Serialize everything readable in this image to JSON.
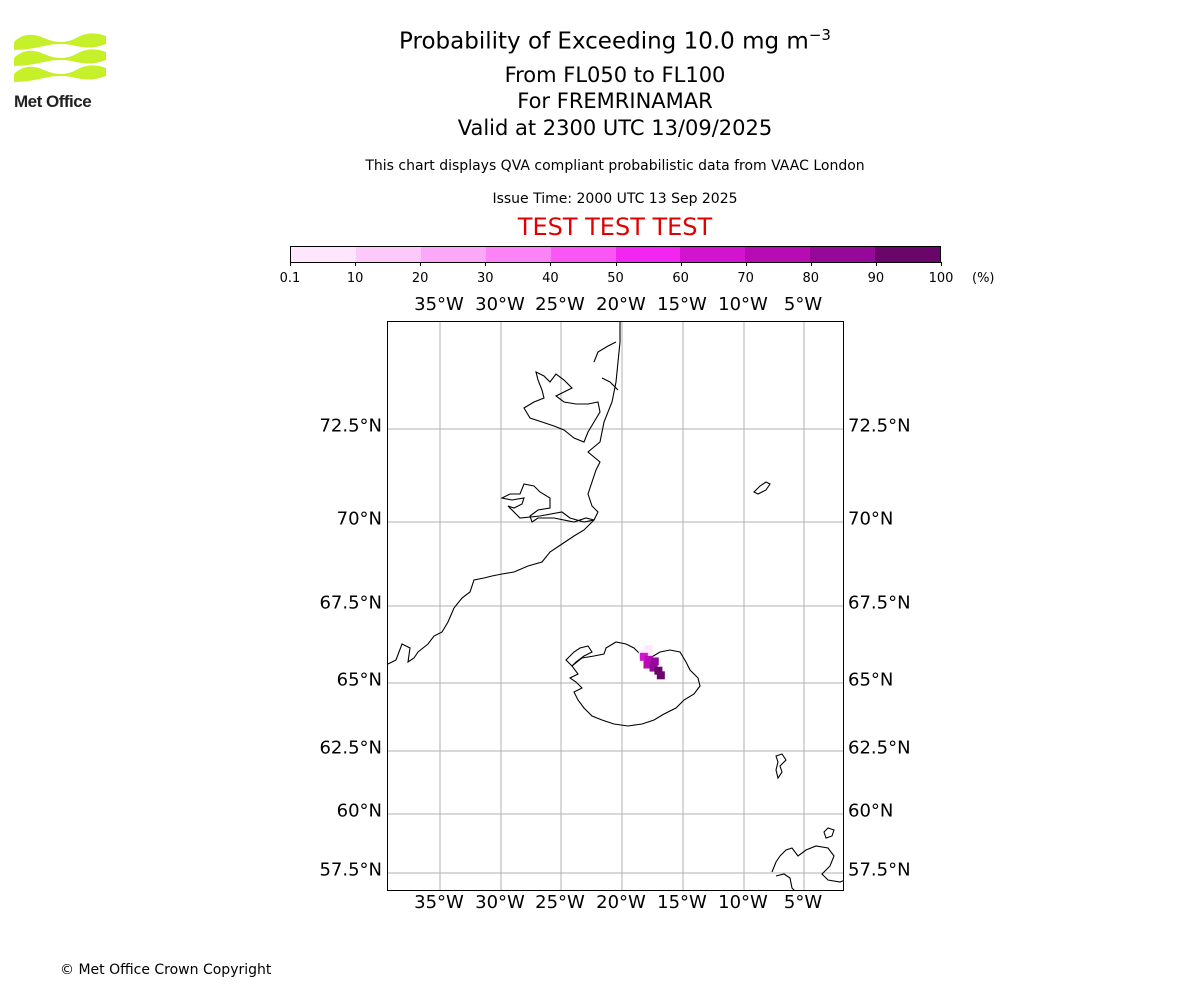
{
  "header": {
    "logo_icon": "met-office-wave-logo",
    "logo_text": "Met Office",
    "title_main": "Probability of Exceeding 10.0 mg m",
    "title_exponent": "−3",
    "levels": "From FL050 to FL100",
    "volcano": "For FREMRINAMAR",
    "valid": "Valid at 2300 UTC 13/09/2025",
    "description": "This chart displays QVA compliant probabilistic data from VAAC London",
    "issue_time": "Issue Time: 2000 UTC 13 Sep 2025",
    "banner": "TEST TEST TEST",
    "banner_color": "#e00000"
  },
  "colorbar": {
    "unit": "(%)",
    "ticks": [
      "0.1",
      "10",
      "20",
      "30",
      "40",
      "50",
      "60",
      "70",
      "80",
      "90",
      "100"
    ],
    "colors": [
      "#fee6fd",
      "#fdc9fb",
      "#fca8f8",
      "#fb83f6",
      "#fa55f5",
      "#f325f0",
      "#d213cf",
      "#b70bb4",
      "#96089a",
      "#6a0569"
    ]
  },
  "map": {
    "longitude_labels": [
      "35°W",
      "30°W",
      "25°W",
      "20°W",
      "15°W",
      "10°W",
      "5°W"
    ],
    "latitude_labels": [
      "72.5°N",
      "70°N",
      "67.5°N",
      "65°N",
      "62.5°N",
      "60°N",
      "57.5°N"
    ],
    "gridlines": true,
    "coastline_color": "#000000",
    "grid_color": "#b0b0b0",
    "regions": [
      "Greenland",
      "Iceland",
      "Jan Mayen",
      "Faroe Islands",
      "Shetland",
      "Scotland"
    ],
    "probability_cells": [
      {
        "lon": -18.3,
        "lat": 65.95,
        "percent": 5
      },
      {
        "lon": -17.9,
        "lat": 65.85,
        "percent": 8
      },
      {
        "lon": -17.8,
        "lat": 66.1,
        "percent": 5
      },
      {
        "lon": -18.2,
        "lat": 65.85,
        "percent": 65
      },
      {
        "lon": -17.8,
        "lat": 65.75,
        "percent": 70
      },
      {
        "lon": -17.9,
        "lat": 65.6,
        "percent": 75
      },
      {
        "lon": -17.4,
        "lat": 65.5,
        "percent": 85
      },
      {
        "lon": -17.0,
        "lat": 65.4,
        "percent": 95
      },
      {
        "lon": -16.8,
        "lat": 65.25,
        "percent": 95
      },
      {
        "lon": -17.3,
        "lat": 65.7,
        "percent": 80
      }
    ]
  },
  "footer": {
    "copyright": "© Met Office Crown Copyright"
  }
}
